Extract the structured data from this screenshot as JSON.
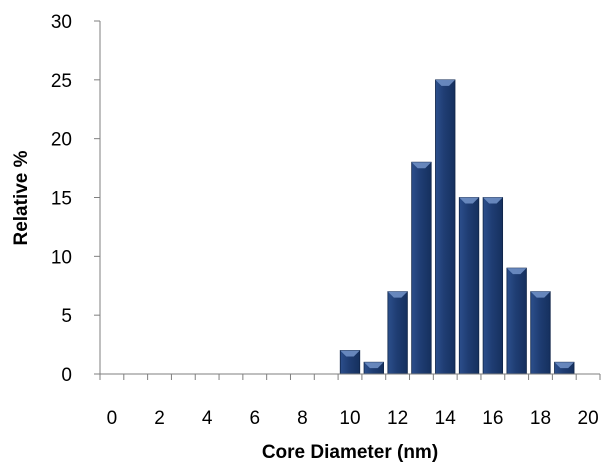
{
  "chart_data": {
    "type": "bar",
    "title": "",
    "xlabel": "Core Diameter (nm)",
    "ylabel": "Relative %",
    "x": [
      10,
      11,
      12,
      13,
      14,
      15,
      16,
      17,
      18,
      19
    ],
    "values": [
      2,
      1,
      7,
      18,
      25,
      15,
      15,
      9,
      7,
      1
    ],
    "xlim": [
      0,
      20
    ],
    "ylim": [
      0,
      30
    ],
    "x_ticks": [
      "0",
      "2",
      "4",
      "6",
      "8",
      "10",
      "12",
      "14",
      "16",
      "18",
      "20"
    ],
    "y_ticks": [
      "0",
      "5",
      "10",
      "15",
      "20",
      "25",
      "30"
    ],
    "grid": false,
    "legend": "none",
    "bar_color": "#1f3d73",
    "bar_highlight": "#6f8fc4"
  }
}
